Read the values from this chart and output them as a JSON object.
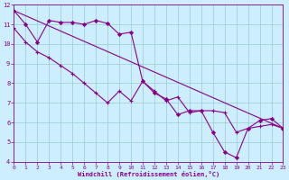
{
  "xlabel": "Windchill (Refroidissement éolien,°C)",
  "bg_color": "#cceeff",
  "line_color": "#880088",
  "grid_color": "#99cccc",
  "xlim": [
    0,
    23
  ],
  "ylim": [
    4,
    12
  ],
  "xticks": [
    0,
    1,
    2,
    3,
    4,
    5,
    6,
    7,
    8,
    9,
    10,
    11,
    12,
    13,
    14,
    15,
    16,
    17,
    18,
    19,
    20,
    21,
    22,
    23
  ],
  "yticks": [
    4,
    5,
    6,
    7,
    8,
    9,
    10,
    11,
    12
  ],
  "line1_x": [
    0,
    1,
    2,
    3,
    4,
    5,
    6,
    7,
    8,
    9,
    10,
    11,
    12,
    13,
    14,
    15,
    16,
    17,
    18,
    19,
    20,
    21,
    22,
    23
  ],
  "line1_y": [
    11.7,
    11.0,
    10.1,
    11.2,
    11.1,
    11.1,
    11.0,
    11.2,
    11.05,
    10.5,
    10.6,
    8.1,
    7.5,
    7.2,
    6.4,
    6.6,
    6.6,
    5.5,
    4.5,
    4.2,
    5.7,
    6.1,
    6.2,
    5.7
  ],
  "line2_x": [
    0,
    1,
    2,
    3,
    4,
    5,
    6,
    7,
    8,
    9,
    10,
    11,
    12,
    13,
    14,
    15,
    16,
    17,
    18,
    19,
    20,
    21,
    22,
    23
  ],
  "line2_y": [
    10.8,
    10.1,
    9.6,
    9.3,
    8.9,
    8.5,
    8.0,
    7.5,
    7.0,
    7.6,
    7.1,
    8.1,
    7.6,
    7.1,
    7.3,
    6.5,
    6.6,
    6.6,
    6.5,
    5.5,
    5.7,
    5.8,
    5.9,
    5.7
  ],
  "line3_x": [
    0,
    23
  ],
  "line3_y": [
    11.7,
    5.7
  ]
}
